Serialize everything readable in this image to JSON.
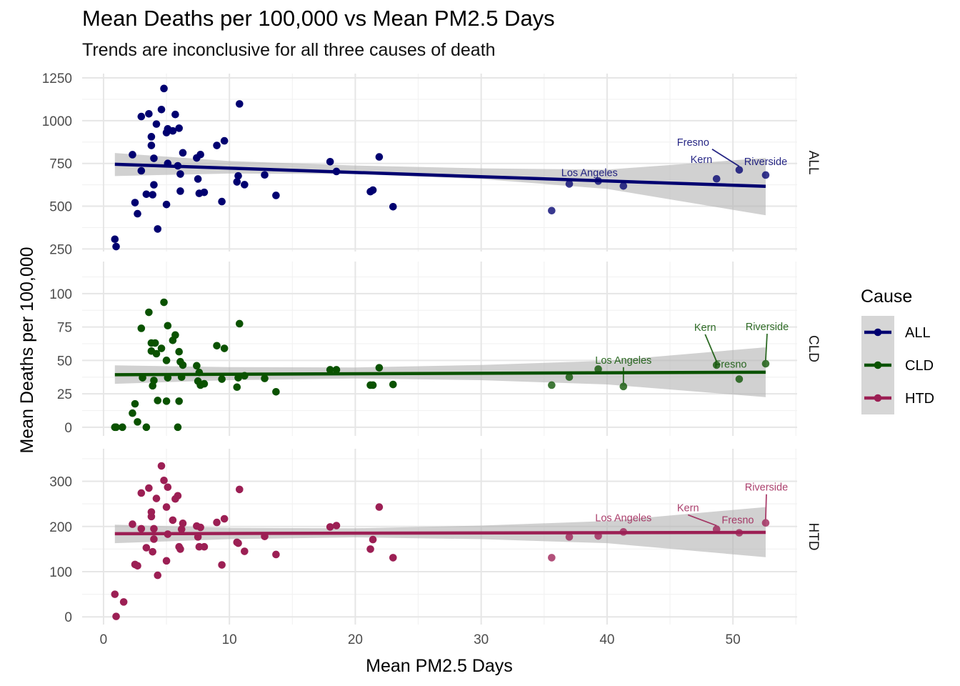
{
  "title": "Mean Deaths per 100,000 vs Mean PM2.5 Days",
  "subtitle": "Trends are inconclusive for all three causes of death",
  "xlabel": "Mean PM2.5 Days",
  "ylabel": "Mean Deaths per 100,000",
  "legend": {
    "title": "Cause",
    "items": [
      "ALL",
      "CLD",
      "HTD"
    ]
  },
  "colors": {
    "ALL": "#000070",
    "CLD": "#0a5200",
    "HTD": "#9c1f54",
    "ribbon": "#c8c8c8",
    "grid": "#ebebeb"
  },
  "chart_data": {
    "type": "scatter",
    "facets": [
      {
        "name": "ALL",
        "color": "#000070",
        "ylim": [
          235,
          1275
        ],
        "yticks": [
          250,
          500,
          750,
          1000,
          1250
        ],
        "trend": {
          "x": [
            0.9,
            52.6
          ],
          "y": [
            745,
            616
          ]
        },
        "ribbon": {
          "x": [
            0.9,
            10,
            20,
            30,
            40,
            52.6
          ],
          "lower": [
            676,
            691,
            688,
            659,
            601,
            447
          ],
          "upper": [
            811,
            764,
            738,
            721,
            714,
            782
          ]
        },
        "points": [
          [
            0.9,
            307
          ],
          [
            1.0,
            264
          ],
          [
            2.3,
            801
          ],
          [
            2.5,
            521
          ],
          [
            2.7,
            456
          ],
          [
            3.0,
            707
          ],
          [
            3.0,
            1024
          ],
          [
            3.4,
            570
          ],
          [
            3.6,
            1040
          ],
          [
            3.8,
            855
          ],
          [
            3.8,
            906
          ],
          [
            3.9,
            567
          ],
          [
            4.0,
            780
          ],
          [
            4.0,
            625
          ],
          [
            4.2,
            980
          ],
          [
            4.3,
            367
          ],
          [
            4.6,
            1065
          ],
          [
            4.8,
            1188
          ],
          [
            5.0,
            510
          ],
          [
            5.0,
            930
          ],
          [
            5.1,
            750
          ],
          [
            5.1,
            952
          ],
          [
            5.5,
            940
          ],
          [
            5.7,
            1036
          ],
          [
            5.9,
            736
          ],
          [
            6.0,
            956
          ],
          [
            6.1,
            688
          ],
          [
            6.1,
            588
          ],
          [
            6.3,
            812
          ],
          [
            7.4,
            782
          ],
          [
            7.5,
            659
          ],
          [
            7.6,
            575
          ],
          [
            7.7,
            802
          ],
          [
            8.0,
            581
          ],
          [
            9.0,
            855
          ],
          [
            9.4,
            527
          ],
          [
            9.6,
            882
          ],
          [
            10.6,
            642
          ],
          [
            10.7,
            677
          ],
          [
            10.8,
            1098
          ],
          [
            11.2,
            626
          ],
          [
            12.8,
            683
          ],
          [
            13.7,
            563
          ],
          [
            18.0,
            760
          ],
          [
            18.5,
            703
          ],
          [
            21.2,
            585
          ],
          [
            21.4,
            594
          ],
          [
            21.9,
            788
          ],
          [
            23.0,
            497
          ],
          [
            35.6,
            474
          ],
          [
            37.0,
            630
          ],
          [
            39.3,
            647
          ],
          [
            41.3,
            618
          ],
          [
            48.7,
            660
          ],
          [
            50.5,
            712
          ],
          [
            52.6,
            682
          ]
        ],
        "labels": [
          {
            "text": "Fresno",
            "x": 50.5,
            "y": 712
          },
          {
            "text": "Riverside",
            "x": 52.6,
            "y": 682
          },
          {
            "text": "Kern",
            "x": 48.7,
            "y": 660
          },
          {
            "text": "Los Angeles",
            "x": 41.3,
            "y": 618
          }
        ]
      },
      {
        "name": "CLD",
        "color": "#0a5200",
        "ylim": [
          -6.5,
          124
        ],
        "yticks": [
          0,
          25,
          50,
          75,
          100
        ],
        "trend": {
          "x": [
            0.9,
            52.6
          ],
          "y": [
            39.3,
            41.2
          ]
        },
        "ribbon": {
          "x": [
            0.9,
            10,
            20,
            30,
            40,
            52.6
          ],
          "lower": [
            32.5,
            35.2,
            36.4,
            35.2,
            32.0,
            22.5
          ],
          "upper": [
            46.3,
            45.0,
            44.7,
            46.6,
            49.7,
            59.8
          ]
        },
        "points": [
          [
            0.9,
            0
          ],
          [
            1.0,
            0
          ],
          [
            1.5,
            0
          ],
          [
            2.3,
            10.5
          ],
          [
            2.5,
            17.5
          ],
          [
            2.7,
            4
          ],
          [
            3.0,
            74
          ],
          [
            3.1,
            37
          ],
          [
            3.4,
            0
          ],
          [
            3.6,
            86
          ],
          [
            3.8,
            63
          ],
          [
            3.8,
            57
          ],
          [
            3.9,
            31
          ],
          [
            4.0,
            35
          ],
          [
            4.1,
            63
          ],
          [
            4.2,
            55
          ],
          [
            4.3,
            20
          ],
          [
            4.6,
            59
          ],
          [
            4.8,
            93.5
          ],
          [
            5.0,
            19.5
          ],
          [
            5.0,
            50
          ],
          [
            5.1,
            76
          ],
          [
            5.1,
            37
          ],
          [
            5.5,
            65
          ],
          [
            5.7,
            69
          ],
          [
            5.9,
            0
          ],
          [
            6.0,
            19.5
          ],
          [
            6.0,
            56.5
          ],
          [
            6.1,
            49
          ],
          [
            6.2,
            37.5
          ],
          [
            6.3,
            46.5
          ],
          [
            7.4,
            46
          ],
          [
            7.5,
            34.5
          ],
          [
            7.6,
            41
          ],
          [
            7.7,
            31.5
          ],
          [
            8.0,
            32.5
          ],
          [
            9.0,
            61
          ],
          [
            9.4,
            36
          ],
          [
            9.6,
            59
          ],
          [
            10.6,
            30
          ],
          [
            10.7,
            37
          ],
          [
            10.8,
            77.5
          ],
          [
            11.2,
            38.5
          ],
          [
            12.8,
            36.5
          ],
          [
            13.7,
            26.5
          ],
          [
            18.0,
            43
          ],
          [
            18.5,
            43
          ],
          [
            21.2,
            31.5
          ],
          [
            21.4,
            31.5
          ],
          [
            21.9,
            44.5
          ],
          [
            23.0,
            32
          ],
          [
            35.6,
            31.5
          ],
          [
            37.0,
            37.5
          ],
          [
            39.3,
            43.5
          ],
          [
            41.3,
            30.5
          ],
          [
            48.7,
            46.5
          ],
          [
            50.5,
            36
          ],
          [
            52.6,
            47.5
          ]
        ],
        "labels": [
          {
            "text": "Kern",
            "x": 48.7,
            "y": 46.5
          },
          {
            "text": "Riverside",
            "x": 52.6,
            "y": 47.5
          },
          {
            "text": "Los Angeles",
            "x": 41.3,
            "y": 30.5
          },
          {
            "text": "Fresno",
            "x": 50.5,
            "y": 36
          }
        ]
      },
      {
        "name": "HTD",
        "color": "#9c1f54",
        "ylim": [
          -17,
          372
        ],
        "yticks": [
          0,
          100,
          200,
          300
        ],
        "trend": {
          "x": [
            0.9,
            52.6
          ],
          "y": [
            184,
            187
          ]
        },
        "ribbon": {
          "x": [
            0.9,
            10,
            20,
            30,
            40,
            52.6
          ],
          "lower": [
            163,
            172,
            176,
            172,
            163,
            132
          ],
          "upper": [
            204,
            197,
            196,
            202,
            212,
            243
          ]
        },
        "points": [
          [
            0.9,
            50
          ],
          [
            1.0,
            1
          ],
          [
            1.6,
            33
          ],
          [
            2.3,
            205
          ],
          [
            2.5,
            116
          ],
          [
            2.7,
            113
          ],
          [
            3.0,
            274
          ],
          [
            3.0,
            195
          ],
          [
            3.4,
            153
          ],
          [
            3.6,
            285
          ],
          [
            3.8,
            222
          ],
          [
            3.8,
            232
          ],
          [
            3.9,
            144
          ],
          [
            4.0,
            195
          ],
          [
            4.0,
            172
          ],
          [
            4.2,
            262
          ],
          [
            4.3,
            92
          ],
          [
            4.6,
            334
          ],
          [
            4.8,
            302
          ],
          [
            5.0,
            124
          ],
          [
            5.0,
            243
          ],
          [
            5.1,
            287
          ],
          [
            5.1,
            183
          ],
          [
            5.5,
            214
          ],
          [
            5.7,
            261
          ],
          [
            5.9,
            268
          ],
          [
            6.0,
            155
          ],
          [
            6.1,
            150
          ],
          [
            6.2,
            194
          ],
          [
            6.3,
            207
          ],
          [
            7.4,
            201
          ],
          [
            7.5,
            177
          ],
          [
            7.6,
            155
          ],
          [
            7.7,
            198
          ],
          [
            8.0,
            155
          ],
          [
            9.0,
            209
          ],
          [
            9.4,
            115
          ],
          [
            9.6,
            217
          ],
          [
            10.6,
            165
          ],
          [
            10.7,
            163
          ],
          [
            10.8,
            282
          ],
          [
            11.2,
            145
          ],
          [
            12.8,
            178
          ],
          [
            13.7,
            138
          ],
          [
            18.0,
            199
          ],
          [
            18.5,
            202
          ],
          [
            21.2,
            150
          ],
          [
            21.4,
            171
          ],
          [
            21.9,
            243
          ],
          [
            23.0,
            131
          ],
          [
            35.6,
            131
          ],
          [
            37.0,
            177
          ],
          [
            39.3,
            179
          ],
          [
            41.3,
            188
          ],
          [
            48.7,
            194
          ],
          [
            50.5,
            186
          ],
          [
            52.6,
            208
          ]
        ],
        "labels": [
          {
            "text": "Riverside",
            "x": 52.6,
            "y": 208
          },
          {
            "text": "Kern",
            "x": 48.7,
            "y": 194
          },
          {
            "text": "Fresno",
            "x": 50.5,
            "y": 186
          },
          {
            "text": "Los Angeles",
            "x": 41.3,
            "y": 188
          }
        ]
      }
    ],
    "xlim": [
      -1.7,
      55.1
    ],
    "xticks": [
      0,
      10,
      20,
      30,
      40,
      50
    ],
    "legend_position": "right",
    "grid": true
  }
}
